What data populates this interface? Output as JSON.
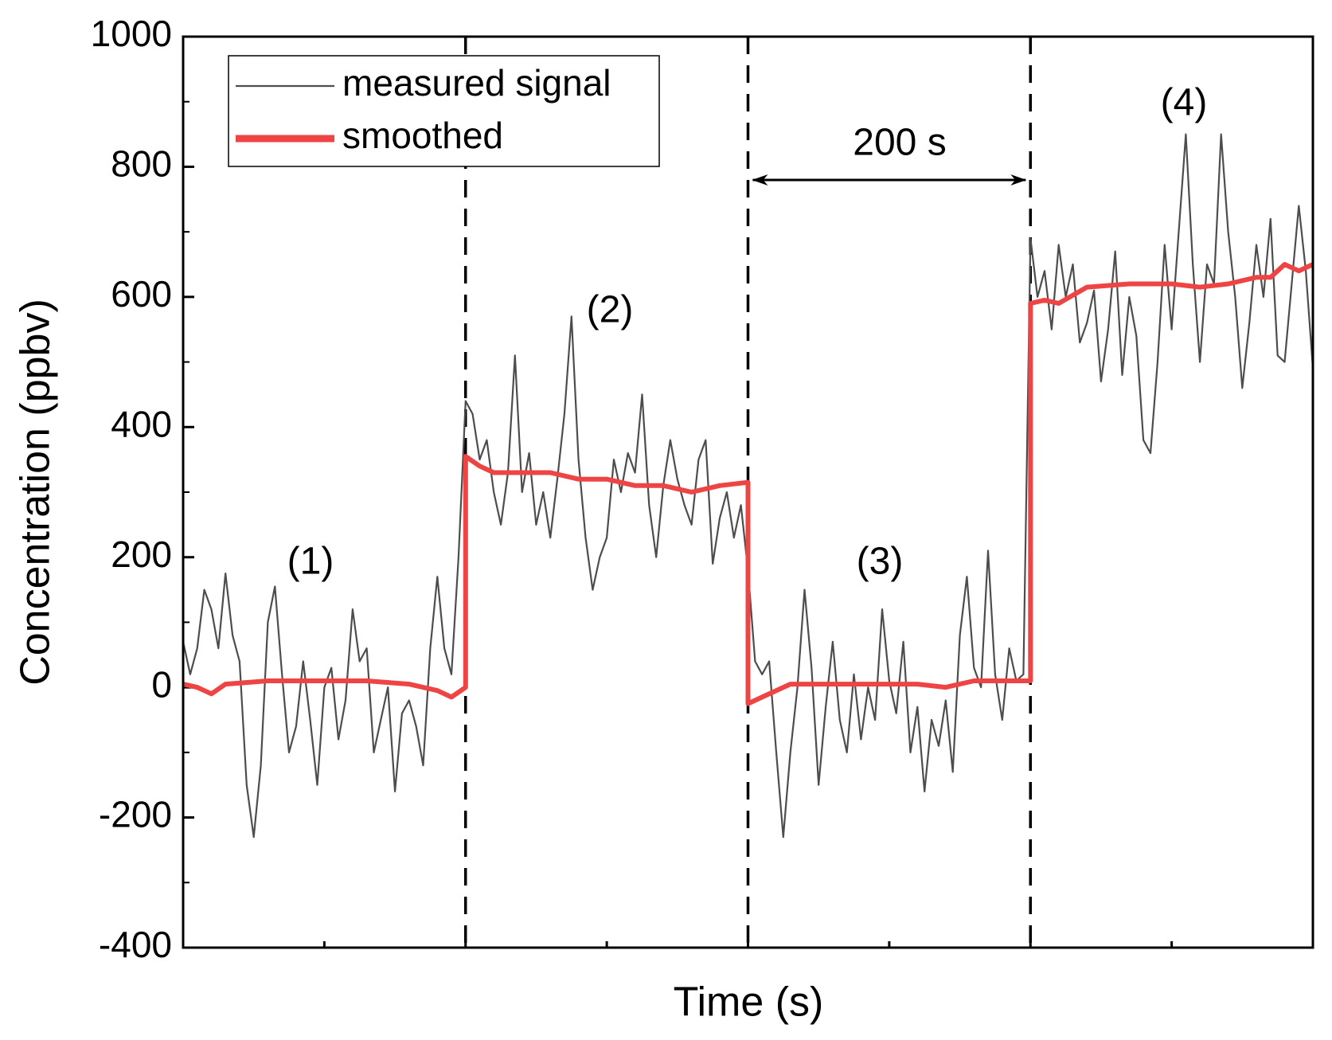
{
  "chart_data": {
    "type": "line",
    "xlabel": "Time (s)",
    "ylabel": "Concentration (ppbv)",
    "xlim": [
      0,
      800
    ],
    "xticks": [
      0,
      100,
      200,
      300,
      400,
      500,
      600,
      700,
      800
    ],
    "ylim": [
      -400,
      1000
    ],
    "yticks": [
      -400,
      -200,
      0,
      200,
      400,
      600,
      800,
      1000
    ],
    "vlines": [
      200,
      400,
      600
    ],
    "legend": "upper left",
    "annotations": [
      "(1)",
      "(2)",
      "(3)",
      "(4)",
      "200 s"
    ],
    "series": [
      {
        "name": "measured signal",
        "color": "#4d4d4d",
        "x": [
          0,
          5,
          10,
          15,
          20,
          25,
          30,
          35,
          40,
          45,
          50,
          55,
          60,
          65,
          70,
          75,
          80,
          85,
          90,
          95,
          100,
          105,
          110,
          115,
          120,
          125,
          130,
          135,
          140,
          145,
          150,
          155,
          160,
          165,
          170,
          175,
          180,
          185,
          190,
          195,
          200,
          205,
          210,
          215,
          220,
          225,
          230,
          235,
          240,
          245,
          250,
          255,
          260,
          265,
          270,
          275,
          280,
          285,
          290,
          295,
          300,
          305,
          310,
          315,
          320,
          325,
          330,
          335,
          340,
          345,
          350,
          355,
          360,
          365,
          370,
          375,
          380,
          385,
          390,
          395,
          400,
          405,
          410,
          415,
          420,
          425,
          430,
          435,
          440,
          445,
          450,
          455,
          460,
          465,
          470,
          475,
          480,
          485,
          490,
          495,
          500,
          505,
          510,
          515,
          520,
          525,
          530,
          535,
          540,
          545,
          550,
          555,
          560,
          565,
          570,
          575,
          580,
          585,
          590,
          595,
          600,
          605,
          610,
          615,
          620,
          625,
          630,
          635,
          640,
          645,
          650,
          655,
          660,
          665,
          670,
          675,
          680,
          685,
          690,
          695,
          700,
          705,
          710,
          715,
          720,
          725,
          730,
          735,
          740,
          745,
          750,
          755,
          760,
          765,
          770,
          775,
          780,
          785,
          790,
          795,
          800
        ],
        "values": [
          70,
          20,
          60,
          150,
          120,
          60,
          175,
          80,
          40,
          -150,
          -230,
          -120,
          100,
          155,
          20,
          -100,
          -60,
          40,
          -50,
          -150,
          0,
          30,
          -80,
          -20,
          120,
          40,
          60,
          -100,
          -50,
          0,
          -160,
          -40,
          -20,
          -60,
          -120,
          60,
          170,
          60,
          20,
          200,
          440,
          420,
          350,
          380,
          300,
          250,
          330,
          510,
          300,
          360,
          250,
          300,
          230,
          320,
          420,
          570,
          350,
          230,
          150,
          200,
          230,
          350,
          300,
          360,
          330,
          450,
          280,
          200,
          310,
          380,
          320,
          280,
          250,
          350,
          380,
          190,
          260,
          300,
          230,
          280,
          180,
          40,
          20,
          40,
          -100,
          -230,
          -100,
          0,
          150,
          30,
          -150,
          -30,
          70,
          -50,
          -100,
          20,
          -80,
          0,
          -50,
          120,
          10,
          -40,
          70,
          -100,
          -30,
          -160,
          -50,
          -90,
          -20,
          -130,
          80,
          170,
          30,
          0,
          210,
          20,
          -50,
          60,
          10,
          20,
          690,
          600,
          640,
          550,
          680,
          600,
          650,
          530,
          560,
          610,
          470,
          550,
          670,
          480,
          600,
          540,
          380,
          360,
          500,
          680,
          550,
          700,
          850,
          650,
          500,
          650,
          620,
          850,
          700,
          600,
          460,
          560,
          680,
          600,
          720,
          510,
          500,
          620,
          740,
          640,
          490
        ]
      },
      {
        "name": "smoothed",
        "color": "#ef4444",
        "x": [
          0,
          10,
          20,
          30,
          60,
          110,
          130,
          160,
          180,
          190,
          200,
          200,
          210,
          220,
          240,
          260,
          280,
          300,
          320,
          340,
          360,
          380,
          400,
          400,
          410,
          430,
          480,
          520,
          540,
          560,
          580,
          600,
          600,
          610,
          620,
          640,
          670,
          700,
          720,
          740,
          760,
          770,
          780,
          790,
          800
        ],
        "values": [
          5,
          0,
          -10,
          5,
          10,
          10,
          10,
          5,
          -5,
          -15,
          0,
          355,
          340,
          330,
          330,
          330,
          320,
          320,
          310,
          310,
          300,
          310,
          315,
          -25,
          -15,
          5,
          5,
          5,
          0,
          10,
          10,
          10,
          590,
          595,
          590,
          615,
          620,
          620,
          615,
          620,
          630,
          630,
          650,
          640,
          650
        ]
      }
    ]
  }
}
